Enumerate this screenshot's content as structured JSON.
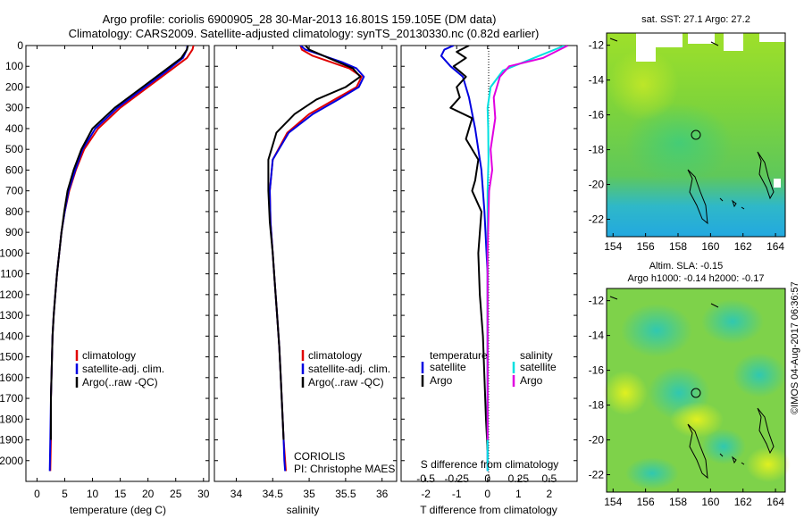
{
  "header": {
    "line1": "Argo profile: coriolis 6900905_28 30-Mar-2013 16.801S 159.105E (DM data)",
    "line2": "Climatology: CARS2009. Satellite-adjusted climatology: synTS_20130330.nc (0.82d earlier)"
  },
  "side_stamp": "©IMOS 04-Aug-2017 06:36:57",
  "institution": {
    "name": "CORIOLIS",
    "pi": "PI: Christophe MAES"
  },
  "colors": {
    "climatology": "#e00000",
    "satellite": "#0000e0",
    "argo": "#000000",
    "sat_salinity": "#00e0e0",
    "argo_salinity": "#e000e0"
  },
  "maps": {
    "sst": {
      "title": "sat. SST: 27.1  Argo: 27.2"
    },
    "sla": {
      "title1": "Altim. SLA: -0.15",
      "title2": "Argo h1000: -0.14  h2000: -0.17"
    },
    "x_ticks": [
      "154",
      "156",
      "158",
      "160",
      "162",
      "164"
    ],
    "y_ticks": [
      "-12",
      "-14",
      "-16",
      "-18",
      "-20",
      "-22"
    ],
    "float_position": {
      "lon": 159.105,
      "lat": -16.801
    }
  },
  "chart_data": [
    {
      "type": "line",
      "xlabel": "temperature (deg C)",
      "ylabel": "",
      "xlim": [
        -2,
        31
      ],
      "ylim": [
        2100,
        0
      ],
      "x_ticks": [
        "0",
        "5",
        "10",
        "15",
        "20",
        "25",
        "30"
      ],
      "y_ticks": [
        "0",
        "100",
        "200",
        "300",
        "400",
        "500",
        "600",
        "700",
        "800",
        "900",
        "1000",
        "1100",
        "1200",
        "1300",
        "1400",
        "1500",
        "1600",
        "1700",
        "1800",
        "1900",
        "2000"
      ],
      "legend": [
        "climatology",
        "satellite-adj. clim.",
        "Argo(..raw -QC)"
      ],
      "legend_placement": "lower-right",
      "series": [
        {
          "name": "climatology",
          "color": "#e00000",
          "x": [
            28.2,
            28.0,
            27.0,
            24.0,
            20.0,
            15.0,
            11.0,
            8.5,
            7.0,
            5.8,
            5.0,
            4.4,
            4.0,
            3.6,
            3.3,
            3.0,
            2.8,
            2.7,
            2.6,
            2.5,
            2.5,
            2.4
          ],
          "y": [
            0,
            20,
            60,
            120,
            200,
            300,
            400,
            500,
            600,
            700,
            800,
            900,
            1000,
            1100,
            1200,
            1300,
            1400,
            1500,
            1600,
            1700,
            1900,
            2050
          ]
        },
        {
          "name": "satellite-adj. clim.",
          "color": "#0000e0",
          "x": [
            27.1,
            27.0,
            26.3,
            23.5,
            19.5,
            14.5,
            10.5,
            8.2,
            6.9,
            5.7,
            5.0,
            4.4,
            4.0,
            3.6,
            3.3,
            3.0,
            2.8,
            2.7,
            2.6,
            2.5,
            2.4,
            2.3
          ],
          "y": [
            0,
            20,
            60,
            120,
            200,
            300,
            400,
            500,
            600,
            700,
            800,
            900,
            1000,
            1100,
            1200,
            1300,
            1400,
            1500,
            1600,
            1700,
            1900,
            2050
          ]
        },
        {
          "name": "Argo(..raw -QC)",
          "color": "#000000",
          "x": [
            27.2,
            27.0,
            26.0,
            23.0,
            19.0,
            14.0,
            10.0,
            8.0,
            6.6,
            5.5,
            4.9,
            4.4,
            4.0,
            3.6,
            3.3,
            3.0,
            2.8,
            2.7,
            2.6,
            2.5,
            2.5
          ],
          "y": [
            0,
            20,
            60,
            120,
            200,
            300,
            400,
            500,
            600,
            700,
            800,
            900,
            1000,
            1100,
            1200,
            1300,
            1400,
            1500,
            1600,
            1700,
            1900
          ]
        }
      ]
    },
    {
      "type": "line",
      "xlabel": "salinity",
      "ylabel": "",
      "xlim": [
        33.7,
        36.2
      ],
      "ylim": [
        2100,
        0
      ],
      "x_ticks": [
        "34",
        "34.5",
        "35",
        "35.5",
        "36"
      ],
      "legend": [
        "climatology",
        "satellite-adj. clim.",
        "Argo(..raw -QC)"
      ],
      "legend_placement": "lower-right",
      "series": [
        {
          "name": "climatology",
          "color": "#e00000",
          "x": [
            34.88,
            34.9,
            35.05,
            35.3,
            35.55,
            35.72,
            35.65,
            35.35,
            35.0,
            34.7,
            34.5,
            34.46,
            34.47,
            34.5,
            34.53,
            34.56,
            34.59,
            34.61,
            34.63,
            34.65,
            34.67,
            34.68
          ],
          "y": [
            0,
            20,
            50,
            80,
            110,
            150,
            200,
            260,
            330,
            420,
            550,
            700,
            850,
            1000,
            1150,
            1300,
            1450,
            1600,
            1750,
            1900,
            2000,
            2050
          ]
        },
        {
          "name": "satellite-adj. clim.",
          "color": "#0000e0",
          "x": [
            34.88,
            34.95,
            35.2,
            35.45,
            35.65,
            35.75,
            35.68,
            35.4,
            35.05,
            34.72,
            34.5,
            34.46,
            34.47,
            34.5,
            34.53,
            34.56,
            34.59,
            34.61,
            34.63,
            34.65,
            34.66,
            34.67
          ],
          "y": [
            0,
            20,
            50,
            80,
            110,
            150,
            200,
            260,
            330,
            420,
            550,
            700,
            850,
            1000,
            1150,
            1300,
            1450,
            1600,
            1750,
            1900,
            2000,
            2050
          ]
        },
        {
          "name": "Argo(..raw -QC)",
          "color": "#000000",
          "x": [
            34.95,
            35.0,
            35.2,
            35.4,
            35.6,
            35.7,
            35.5,
            35.1,
            34.8,
            34.55,
            34.44,
            34.44,
            34.46,
            34.5,
            34.53,
            34.56,
            34.59,
            34.61,
            34.63,
            34.65
          ],
          "y": [
            0,
            20,
            50,
            80,
            110,
            150,
            200,
            260,
            330,
            420,
            550,
            700,
            850,
            1000,
            1150,
            1300,
            1450,
            1600,
            1750,
            1900
          ]
        }
      ]
    },
    {
      "type": "line",
      "xlabel": "T difference from climatology",
      "xlabel2": "S difference from climatology",
      "ylabel": "",
      "xlim": [
        -2.8,
        2.9
      ],
      "ylim": [
        2100,
        0
      ],
      "x_ticks": [
        "-2",
        "-1",
        "0",
        "1",
        "2"
      ],
      "x_ticks_top": [
        "-0.5",
        "-0.25",
        "0",
        "0.25",
        "0.5"
      ],
      "legend_temperature": {
        "title": "temperature",
        "items": [
          "satellite",
          "Argo"
        ]
      },
      "legend_salinity": {
        "title": "salinity",
        "items": [
          "satellite",
          "Argo"
        ]
      },
      "legend_placement": "lower-center",
      "series": [
        {
          "name": "satellite",
          "group": "temperature",
          "color": "#0000e0",
          "x": [
            -1.1,
            -1.4,
            -1.5,
            -1.2,
            -0.8,
            -0.6,
            -0.4,
            -0.2,
            -0.1,
            0,
            0,
            0
          ],
          "y": [
            0,
            20,
            50,
            100,
            150,
            250,
            400,
            600,
            800,
            1100,
            1500,
            2050
          ]
        },
        {
          "name": "Argo",
          "group": "temperature",
          "color": "#000000",
          "x": [
            -0.6,
            -1.0,
            -0.7,
            -1.1,
            -0.7,
            -1.0,
            -0.9,
            -1.2,
            -0.5,
            -0.7,
            -0.3,
            -0.4,
            -0.5,
            -0.2,
            -0.3,
            -0.25,
            -0.15,
            -0.1,
            -0.05,
            0
          ],
          "y": [
            0,
            30,
            60,
            100,
            150,
            200,
            250,
            300,
            350,
            450,
            550,
            650,
            700,
            800,
            1000,
            1200,
            1400,
            1600,
            1800,
            1950
          ]
        },
        {
          "name": "satellite",
          "group": "salinity",
          "color": "#00e0e0",
          "x": [
            2.5,
            1.5,
            0.5,
            0.1,
            0,
            0.02,
            0.03,
            0,
            0,
            0
          ],
          "y": [
            0,
            60,
            120,
            200,
            300,
            400,
            550,
            700,
            1200,
            2050
          ]
        },
        {
          "name": "Argo",
          "group": "salinity",
          "color": "#e000e0",
          "x": [
            2.6,
            1.8,
            0.7,
            0.4,
            0.2,
            0.25,
            0.1,
            0.15,
            0.05,
            0,
            0
          ],
          "y": [
            0,
            60,
            100,
            150,
            250,
            350,
            500,
            600,
            700,
            1000,
            1900
          ]
        }
      ]
    }
  ]
}
